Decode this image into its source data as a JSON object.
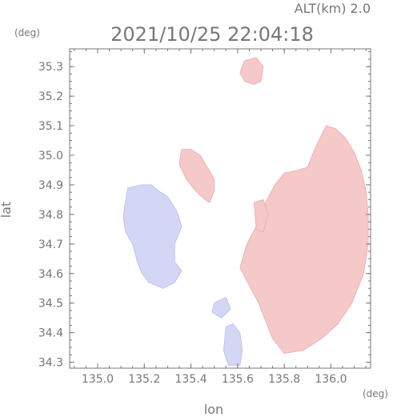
{
  "header": {
    "altitude_label": "ALT(km) 2.0",
    "timestamp": "2021/10/25 22:04:18"
  },
  "chart_data": {
    "type": "heatmap",
    "title": "2021/10/25 22:04:18",
    "subtitle": "ALT(km) 2.0",
    "xlabel": "lon",
    "ylabel": "lat",
    "x_unit": "(deg)",
    "y_unit": "(deg)",
    "xlim": [
      134.88,
      136.17
    ],
    "ylim": [
      34.28,
      35.36
    ],
    "x_ticks": [
      135.0,
      135.2,
      135.4,
      135.6,
      135.8,
      136.0
    ],
    "x_tick_labels": [
      "135.0",
      "135.2",
      "135.4",
      "135.6",
      "135.8",
      "136.0"
    ],
    "y_ticks": [
      34.3,
      34.4,
      34.5,
      34.6,
      34.7,
      34.8,
      34.9,
      35.0,
      35.1,
      35.2,
      35.3
    ],
    "y_tick_labels": [
      "34.3",
      "34.4",
      "34.5",
      "34.6",
      "34.7",
      "34.8",
      "34.9",
      "35.0",
      "35.1",
      "35.2",
      "35.3"
    ],
    "grid": false,
    "colors": {
      "positive": "#f6c9c9",
      "positive_strong": "#f0a6a6",
      "negative": "#d4d6f6",
      "negative_strong": "#b7bbef",
      "axis": "#777777"
    },
    "regions": [
      {
        "sign": "negative",
        "points": [
          [
            135.13,
            34.89
          ],
          [
            135.19,
            34.9
          ],
          [
            135.23,
            34.9
          ],
          [
            135.26,
            34.88
          ],
          [
            135.3,
            34.86
          ],
          [
            135.34,
            34.81
          ],
          [
            135.36,
            34.76
          ],
          [
            135.33,
            34.7
          ],
          [
            135.33,
            34.64
          ],
          [
            135.36,
            34.61
          ],
          [
            135.33,
            34.57
          ],
          [
            135.28,
            34.55
          ],
          [
            135.22,
            34.57
          ],
          [
            135.19,
            34.6
          ],
          [
            135.17,
            34.64
          ],
          [
            135.15,
            34.7
          ],
          [
            135.12,
            34.74
          ],
          [
            135.11,
            34.79
          ],
          [
            135.12,
            34.85
          ]
        ]
      },
      {
        "sign": "positive",
        "points": [
          [
            135.36,
            35.02
          ],
          [
            135.4,
            35.02
          ],
          [
            135.44,
            35.0
          ],
          [
            135.47,
            34.96
          ],
          [
            135.5,
            34.92
          ],
          [
            135.5,
            34.88
          ],
          [
            135.48,
            34.84
          ],
          [
            135.46,
            34.85
          ],
          [
            135.42,
            34.88
          ],
          [
            135.38,
            34.92
          ],
          [
            135.35,
            34.97
          ]
        ]
      },
      {
        "sign": "positive",
        "points": [
          [
            135.63,
            35.32
          ],
          [
            135.68,
            35.33
          ],
          [
            135.71,
            35.3
          ],
          [
            135.7,
            35.25
          ],
          [
            135.67,
            35.24
          ],
          [
            135.63,
            35.25
          ],
          [
            135.61,
            35.28
          ]
        ]
      },
      {
        "sign": "positive",
        "points": [
          [
            135.61,
            34.62
          ],
          [
            135.64,
            34.7
          ],
          [
            135.68,
            34.76
          ],
          [
            135.72,
            34.84
          ],
          [
            135.76,
            34.9
          ],
          [
            135.8,
            34.94
          ],
          [
            135.86,
            34.95
          ],
          [
            135.9,
            34.96
          ],
          [
            135.93,
            35.02
          ],
          [
            135.96,
            35.07
          ],
          [
            135.98,
            35.1
          ],
          [
            136.02,
            35.09
          ],
          [
            136.06,
            35.06
          ],
          [
            136.1,
            35.01
          ],
          [
            136.13,
            34.95
          ],
          [
            136.15,
            34.88
          ],
          [
            136.16,
            34.8
          ],
          [
            136.16,
            34.7
          ],
          [
            136.14,
            34.6
          ],
          [
            136.09,
            34.5
          ],
          [
            136.03,
            34.43
          ],
          [
            135.96,
            34.38
          ],
          [
            135.88,
            34.34
          ],
          [
            135.8,
            34.33
          ],
          [
            135.75,
            34.38
          ],
          [
            135.72,
            34.44
          ],
          [
            135.69,
            34.5
          ],
          [
            135.65,
            34.56
          ]
        ]
      },
      {
        "sign": "positive",
        "points": [
          [
            135.67,
            34.84
          ],
          [
            135.71,
            34.85
          ],
          [
            135.73,
            34.8
          ],
          [
            135.71,
            34.74
          ],
          [
            135.68,
            34.75
          ]
        ]
      },
      {
        "sign": "negative",
        "points": [
          [
            135.55,
            34.42
          ],
          [
            135.58,
            34.43
          ],
          [
            135.61,
            34.4
          ],
          [
            135.62,
            34.34
          ],
          [
            135.61,
            34.29
          ],
          [
            135.56,
            34.29
          ],
          [
            135.54,
            34.34
          ]
        ]
      },
      {
        "sign": "negative",
        "points": [
          [
            135.5,
            34.5
          ],
          [
            135.55,
            34.52
          ],
          [
            135.57,
            34.48
          ],
          [
            135.53,
            34.45
          ],
          [
            135.49,
            34.47
          ]
        ]
      }
    ]
  }
}
